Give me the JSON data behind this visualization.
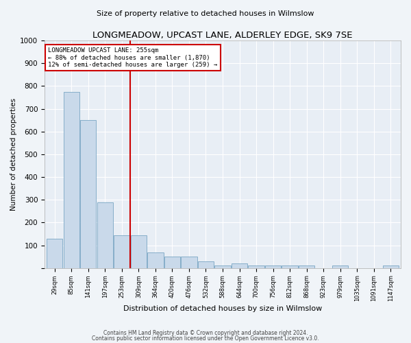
{
  "title": "LONGMEADOW, UPCAST LANE, ALDERLEY EDGE, SK9 7SE",
  "subtitle": "Size of property relative to detached houses in Wilmslow",
  "xlabel": "Distribution of detached houses by size in Wilmslow",
  "ylabel": "Number of detached properties",
  "footnote1": "Contains HM Land Registry data © Crown copyright and database right 2024.",
  "footnote2": "Contains public sector information licensed under the Open Government Licence v3.0.",
  "bar_color": "#c9d9ea",
  "bar_edge_color": "#6699bb",
  "background_color": "#e8eef5",
  "fig_background_color": "#f0f4f8",
  "annotation_box_color": "#ffffff",
  "annotation_border_color": "#cc0000",
  "vline_color": "#cc0000",
  "grid_color": "#ffffff",
  "categories": [
    "29sqm",
    "85sqm",
    "141sqm",
    "197sqm",
    "253sqm",
    "309sqm",
    "364sqm",
    "420sqm",
    "476sqm",
    "532sqm",
    "588sqm",
    "644sqm",
    "700sqm",
    "756sqm",
    "812sqm",
    "868sqm",
    "923sqm",
    "979sqm",
    "1035sqm",
    "1091sqm",
    "1147sqm"
  ],
  "values": [
    130,
    775,
    650,
    290,
    145,
    145,
    70,
    50,
    50,
    30,
    10,
    20,
    10,
    10,
    10,
    10,
    0,
    10,
    0,
    0,
    10
  ],
  "ylim": [
    0,
    1000
  ],
  "yticks": [
    0,
    100,
    200,
    300,
    400,
    500,
    600,
    700,
    800,
    900,
    1000
  ],
  "vline_pos": 4.5,
  "annotation_text_line1": "LONGMEADOW UPCAST LANE: 255sqm",
  "annotation_text_line2": "← 88% of detached houses are smaller (1,870)",
  "annotation_text_line3": "12% of semi-detached houses are larger (259) →"
}
